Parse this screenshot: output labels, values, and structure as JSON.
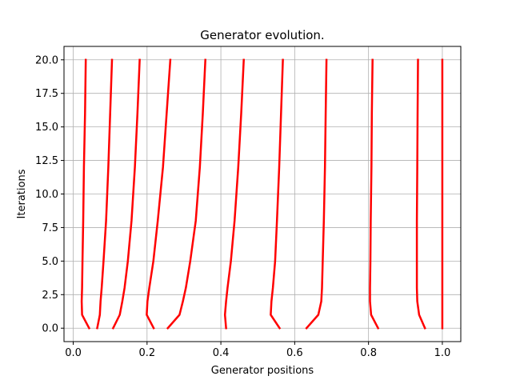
{
  "chart_data": {
    "type": "line",
    "title": "Generator evolution.",
    "xlabel": "Generator positions",
    "ylabel": "Iterations",
    "xlim": [
      -0.025,
      1.05
    ],
    "ylim": [
      -1.0,
      21.0
    ],
    "xticks": [
      0.0,
      0.2,
      0.4,
      0.6,
      0.8,
      1.0
    ],
    "xtick_labels": [
      "0.0",
      "0.2",
      "0.4",
      "0.6",
      "0.8",
      "1.0"
    ],
    "yticks": [
      0.0,
      2.5,
      5.0,
      7.5,
      10.0,
      12.5,
      15.0,
      17.5,
      20.0
    ],
    "ytick_labels": [
      "0.0",
      "2.5",
      "5.0",
      "7.5",
      "10.0",
      "12.5",
      "15.0",
      "17.5",
      "20.0"
    ],
    "grid": true,
    "line_color": "#ff0000",
    "iterations": [
      0,
      1,
      2,
      3,
      5,
      8,
      12,
      16,
      20
    ],
    "series": [
      {
        "x": [
          0.043,
          0.024,
          0.023,
          0.024,
          0.025,
          0.027,
          0.029,
          0.032,
          0.034
        ]
      },
      {
        "x": [
          0.065,
          0.072,
          0.074,
          0.077,
          0.082,
          0.089,
          0.095,
          0.1,
          0.105
        ]
      },
      {
        "x": [
          0.108,
          0.126,
          0.133,
          0.139,
          0.148,
          0.158,
          0.167,
          0.174,
          0.18
        ]
      },
      {
        "x": [
          0.218,
          0.199,
          0.201,
          0.206,
          0.217,
          0.229,
          0.243,
          0.253,
          0.263
        ]
      },
      {
        "x": [
          0.256,
          0.288,
          0.297,
          0.305,
          0.317,
          0.332,
          0.343,
          0.351,
          0.358
        ]
      },
      {
        "x": [
          0.414,
          0.411,
          0.414,
          0.418,
          0.427,
          0.437,
          0.447,
          0.455,
          0.462
        ]
      },
      {
        "x": [
          0.559,
          0.535,
          0.537,
          0.541,
          0.547,
          0.552,
          0.558,
          0.563,
          0.568
        ]
      },
      {
        "x": [
          0.632,
          0.664,
          0.672,
          0.674,
          0.676,
          0.679,
          0.682,
          0.684,
          0.686
        ]
      },
      {
        "x": [
          0.826,
          0.807,
          0.804,
          0.804,
          0.805,
          0.806,
          0.808,
          0.809,
          0.811
        ]
      },
      {
        "x": [
          0.953,
          0.937,
          0.932,
          0.931,
          0.931,
          0.931,
          0.932,
          0.933,
          0.934
        ]
      },
      {
        "x": [
          1.0,
          1.0,
          1.0,
          1.0,
          1.0,
          1.0,
          1.0,
          1.0,
          1.0
        ]
      }
    ]
  }
}
